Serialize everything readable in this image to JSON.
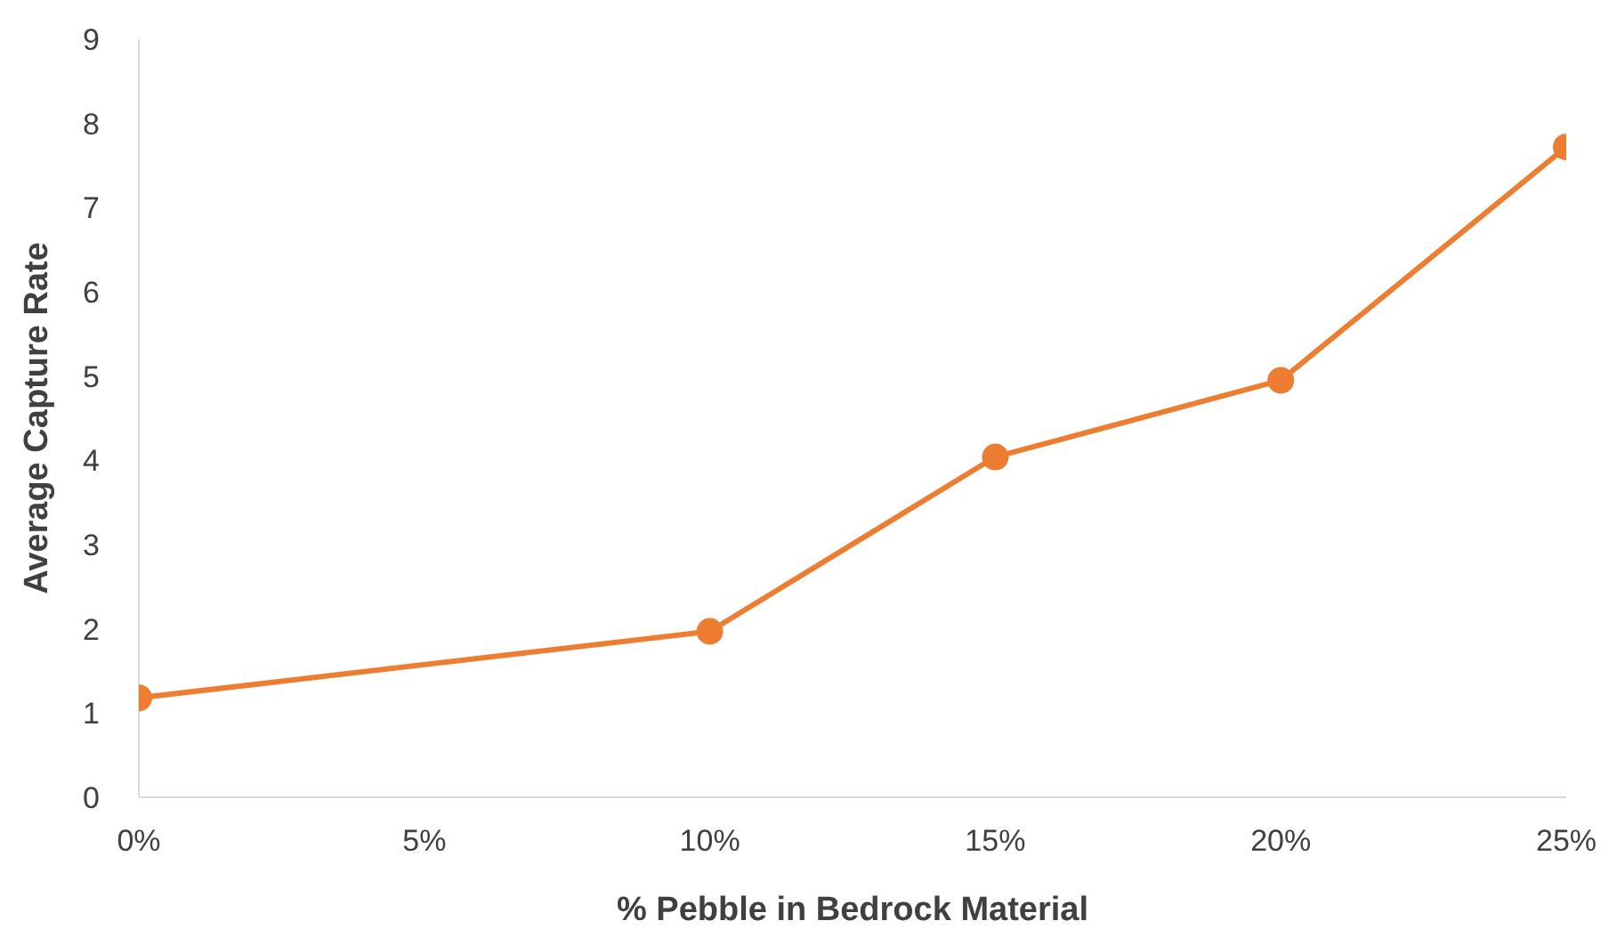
{
  "chart_data": {
    "type": "line",
    "xlabel": "% Pebble in Bedrock Material",
    "ylabel": "Average Capture Rate",
    "x": [
      0,
      10,
      15,
      20,
      25
    ],
    "series": [
      {
        "color": "#ed7d31",
        "values": [
          1.18,
          1.97,
          4.04,
          4.95,
          7.72
        ]
      }
    ],
    "xlim": [
      0,
      25
    ],
    "xticks": [
      {
        "value": 0,
        "label": "0%"
      },
      {
        "value": 5,
        "label": "5%"
      },
      {
        "value": 10,
        "label": "10%"
      },
      {
        "value": 15,
        "label": "15%"
      },
      {
        "value": 20,
        "label": "20%"
      },
      {
        "value": 25,
        "label": "25%"
      }
    ],
    "ylim": [
      0,
      9
    ],
    "yticks": [
      0,
      1,
      2,
      3,
      4,
      5,
      6,
      7,
      8,
      9
    ],
    "grid": false,
    "legend": false,
    "marker": "circle",
    "line_style": "solid"
  }
}
